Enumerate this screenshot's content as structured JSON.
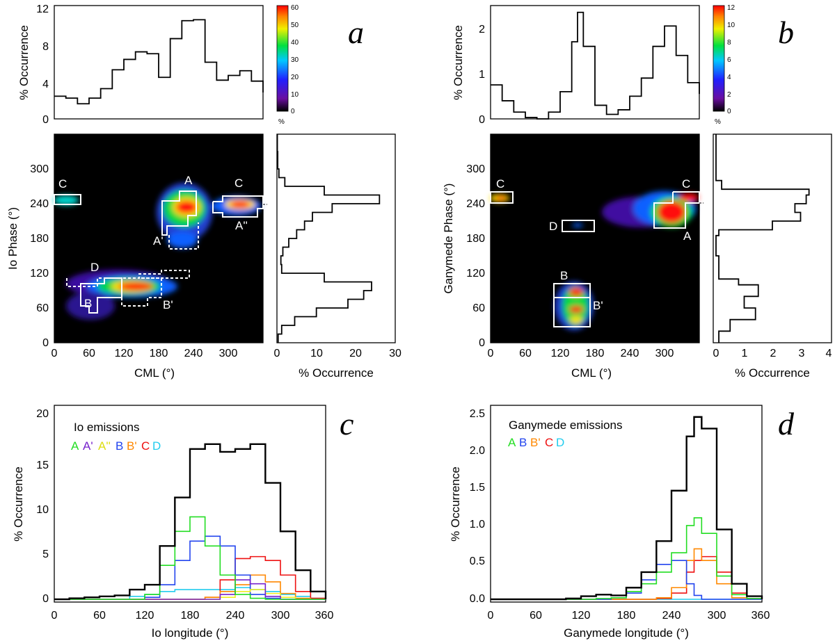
{
  "chart_data": [
    {
      "panel": "a",
      "type": "line",
      "title": "",
      "xlabel": "",
      "ylabel": "% Occurrence",
      "xlim": [
        0,
        360
      ],
      "ylim": [
        0,
        12
      ],
      "yticks": [
        "0",
        "4",
        "8",
        "12"
      ],
      "x": [
        0,
        20,
        40,
        60,
        80,
        100,
        120,
        140,
        160,
        180,
        200,
        220,
        240,
        260,
        280,
        300,
        320,
        340,
        360
      ],
      "values": [
        2.4,
        2.2,
        1.6,
        2.2,
        3.2,
        5.2,
        6.3,
        7.1,
        6.9,
        4.4,
        8.5,
        10.4,
        10.5,
        6.0,
        4.1,
        4.6,
        5.1,
        4.0,
        2.8
      ]
    },
    {
      "panel": "a",
      "type": "heatmap",
      "title": "",
      "xlabel": "CML (°)",
      "ylabel": "Io Phase (°)",
      "xlim": [
        0,
        360
      ],
      "ylim": [
        0,
        360
      ],
      "xticks": [
        "0",
        "60",
        "120",
        "180",
        "240",
        "300"
      ],
      "yticks": [
        "0",
        "60",
        "120",
        "180",
        "240",
        "300"
      ],
      "colorbar": {
        "ticks": [
          "0",
          "10",
          "20",
          "30",
          "40",
          "50",
          "60"
        ],
        "unit": "%"
      },
      "regions": [
        {
          "label": "A",
          "cml": [
            205,
            265
          ],
          "phase": [
            195,
            260
          ],
          "style": "solid"
        },
        {
          "label": "A'",
          "cml": [
            205,
            260
          ],
          "phase": [
            160,
            200
          ],
          "style": "dashed"
        },
        {
          "label": "A''",
          "cml": [
            265,
            330
          ],
          "phase": [
            215,
            250
          ],
          "style": "dashed"
        },
        {
          "label": "B",
          "cml": [
            75,
            175
          ],
          "phase": [
            55,
            115
          ],
          "style": "solid"
        },
        {
          "label": "B'",
          "cml": [
            150,
            195
          ],
          "phase": [
            65,
            120
          ],
          "style": "dashed"
        },
        {
          "label": "C",
          "cml": [
            0,
            40
          ],
          "phase": [
            235,
            255
          ],
          "style": "solid"
        },
        {
          "label": "C",
          "cml": [
            290,
            360
          ],
          "phase": [
            225,
            260
          ],
          "style": "solid"
        },
        {
          "label": "D",
          "cml": [
            10,
            210
          ],
          "phase": [
            95,
            125
          ],
          "style": "dashed"
        }
      ]
    },
    {
      "panel": "a",
      "type": "line",
      "title": "",
      "xlabel": "% Occurrence",
      "ylabel": "",
      "xlim": [
        0,
        30
      ],
      "xticks": [
        "0",
        "10",
        "20",
        "30"
      ],
      "ylim": [
        0,
        360
      ],
      "phase": [
        0,
        15,
        30,
        45,
        60,
        75,
        90,
        105,
        120,
        135,
        150,
        165,
        180,
        195,
        210,
        225,
        240,
        255,
        270,
        285,
        300,
        330,
        360
      ],
      "values": [
        0.3,
        1.2,
        4.5,
        10,
        18,
        22,
        24,
        12,
        1.2,
        1.0,
        1.5,
        3,
        5,
        7,
        9,
        14,
        26,
        12,
        2,
        0.5,
        0.2,
        0.1,
        0.1
      ]
    },
    {
      "panel": "b",
      "type": "line",
      "title": "",
      "xlabel": "",
      "ylabel": "% Occurrence",
      "xlim": [
        0,
        360
      ],
      "ylim": [
        0,
        2.5
      ],
      "yticks": [
        "0",
        "1",
        "2"
      ],
      "x": [
        0,
        20,
        40,
        60,
        80,
        100,
        120,
        140,
        150,
        160,
        180,
        200,
        220,
        240,
        260,
        280,
        300,
        320,
        340,
        360
      ],
      "values": [
        0.75,
        0.4,
        0.15,
        0.03,
        0.0,
        0.15,
        0.6,
        1.7,
        2.35,
        1.6,
        0.3,
        0.1,
        0.2,
        0.5,
        0.9,
        1.6,
        2.05,
        1.4,
        0.8,
        0.55
      ]
    },
    {
      "panel": "b",
      "type": "heatmap",
      "title": "",
      "xlabel": "CML (°)",
      "ylabel": "Ganymede Phase (°)",
      "xlim": [
        0,
        360
      ],
      "ylim": [
        0,
        360
      ],
      "xticks": [
        "0",
        "60",
        "120",
        "180",
        "240",
        "300"
      ],
      "yticks": [
        "0",
        "60",
        "120",
        "180",
        "240",
        "300"
      ],
      "colorbar": {
        "ticks": [
          "0",
          "2",
          "4",
          "6",
          "8",
          "10",
          "12"
        ],
        "unit": "%"
      },
      "regions": [
        {
          "label": "A",
          "cml": [
            290,
            335
          ],
          "phase": [
            195,
            240
          ],
          "style": "solid"
        },
        {
          "label": "B",
          "cml": [
            115,
            165
          ],
          "phase": [
            75,
            100
          ],
          "style": "solid"
        },
        {
          "label": "B'",
          "cml": [
            115,
            165
          ],
          "phase": [
            35,
            75
          ],
          "style": "solid"
        },
        {
          "label": "C",
          "cml": [
            0,
            35
          ],
          "phase": [
            240,
            260
          ],
          "style": "solid"
        },
        {
          "label": "C",
          "cml": [
            320,
            360
          ],
          "phase": [
            240,
            260
          ],
          "style": "solid"
        },
        {
          "label": "D",
          "cml": [
            115,
            165
          ],
          "phase": [
            195,
            210
          ],
          "style": "solid"
        }
      ]
    },
    {
      "panel": "b",
      "type": "line",
      "title": "",
      "xlabel": "% Occurrence",
      "ylabel": "",
      "xlim": [
        0,
        4
      ],
      "xticks": [
        "0",
        "1",
        "2",
        "3",
        "4"
      ],
      "ylim": [
        0,
        360
      ],
      "phase": [
        0,
        20,
        40,
        60,
        80,
        100,
        110,
        150,
        185,
        195,
        210,
        225,
        240,
        255,
        265,
        280,
        360
      ],
      "values": [
        0.1,
        0.5,
        1.4,
        1.0,
        1.5,
        0.8,
        0.1,
        0.0,
        0.1,
        2.0,
        3.0,
        2.8,
        3.2,
        3.3,
        0.2,
        0.0,
        0.0
      ]
    },
    {
      "panel": "c",
      "type": "line",
      "title": "",
      "xlabel": "Io longitude (°)",
      "ylabel": "% Occurrence",
      "xlim": [
        0,
        360
      ],
      "ylim": [
        0,
        20
      ],
      "xticks": [
        "0",
        "60",
        "120",
        "180",
        "240",
        "300",
        "360"
      ],
      "yticks": [
        "0",
        "5",
        "10",
        "15",
        "20"
      ],
      "annotation": "Io emissions",
      "x": [
        0,
        20,
        40,
        60,
        80,
        100,
        120,
        140,
        160,
        180,
        200,
        220,
        240,
        260,
        280,
        300,
        320,
        340,
        360
      ],
      "series": [
        {
          "name": "total",
          "color": "#000000",
          "values": [
            0,
            0.1,
            0.2,
            0.3,
            0.4,
            1.0,
            1.5,
            5.5,
            10.5,
            15.5,
            16.0,
            15.2,
            15.5,
            16.0,
            12.0,
            7.0,
            3.0,
            0.8,
            0
          ]
        },
        {
          "name": "A",
          "color": "#22dd22",
          "values": [
            0,
            0,
            0,
            0,
            0,
            0,
            0.5,
            3.5,
            7.0,
            8.5,
            5.5,
            2.5,
            0.5,
            0.1,
            0,
            0,
            0,
            0,
            0
          ]
        },
        {
          "name": "A'",
          "color": "#7722cc",
          "values": [
            0,
            0,
            0,
            0,
            0,
            0,
            0,
            0,
            0,
            0,
            0,
            0.5,
            2.0,
            1.6,
            0.3,
            0,
            0,
            0,
            0
          ]
        },
        {
          "name": "A''",
          "color": "#eeee22",
          "values": [
            0,
            0,
            0,
            0,
            0,
            0,
            0,
            0,
            0,
            0,
            0,
            0.2,
            0.8,
            1.0,
            0.6,
            0.2,
            0,
            0,
            0
          ]
        },
        {
          "name": "B",
          "color": "#2244ee",
          "values": [
            0,
            0,
            0,
            0,
            0,
            0,
            0.2,
            1.5,
            4.0,
            6.0,
            6.5,
            5.5,
            2.5,
            0.5,
            0.1,
            0,
            0,
            0,
            0
          ]
        },
        {
          "name": "B'",
          "color": "#ff8800",
          "values": [
            0,
            0,
            0,
            0,
            0,
            0,
            0,
            0,
            0,
            0,
            0.2,
            0.8,
            1.5,
            2.5,
            1.8,
            0.6,
            0.1,
            0,
            0
          ]
        },
        {
          "name": "C",
          "color": "#ee1111",
          "values": [
            0,
            0,
            0,
            0,
            0,
            0,
            0,
            0,
            0,
            0,
            0.2,
            2.0,
            4.2,
            4.4,
            4.0,
            2.5,
            0.8,
            0.1,
            0
          ]
        },
        {
          "name": "D",
          "color": "#22ccee",
          "values": [
            0,
            0,
            0,
            0,
            0,
            0.3,
            0.5,
            0.8,
            1.0,
            1.0,
            1.0,
            1.0,
            1.2,
            1.0,
            0.8,
            0.5,
            0.3,
            0.1,
            0
          ]
        }
      ]
    },
    {
      "panel": "d",
      "type": "line",
      "title": "",
      "xlabel": "Ganymede longitude (°)",
      "ylabel": "% Occurrence",
      "xlim": [
        0,
        360
      ],
      "ylim": [
        0,
        2.5
      ],
      "xticks": [
        "0",
        "60",
        "120",
        "180",
        "240",
        "300",
        "360"
      ],
      "yticks": [
        "0.0",
        "0.5",
        "1.0",
        "1.5",
        "2.0",
        "2.5"
      ],
      "annotation": "Ganymede emissions",
      "x": [
        0,
        20,
        40,
        60,
        80,
        100,
        120,
        140,
        160,
        180,
        200,
        220,
        240,
        260,
        270,
        280,
        300,
        320,
        340,
        360
      ],
      "series": [
        {
          "name": "total",
          "color": "#000000",
          "values": [
            0,
            0,
            0,
            0,
            0,
            0.01,
            0.04,
            0.06,
            0.05,
            0.15,
            0.35,
            0.75,
            1.4,
            2.1,
            2.35,
            2.2,
            0.9,
            0.2,
            0.04,
            0
          ]
        },
        {
          "name": "A",
          "color": "#22dd22",
          "values": [
            0,
            0,
            0,
            0,
            0,
            0,
            0,
            0.01,
            0.02,
            0.1,
            0.2,
            0.35,
            0.6,
            0.95,
            1.05,
            0.85,
            0.3,
            0.06,
            0.01,
            0
          ]
        },
        {
          "name": "B",
          "color": "#2244ee",
          "values": [
            0,
            0,
            0,
            0,
            0,
            0,
            0,
            0,
            0.02,
            0.08,
            0.25,
            0.45,
            0.5,
            0.2,
            0.05,
            0,
            0,
            0,
            0,
            0
          ]
        },
        {
          "name": "B'",
          "color": "#ff8800",
          "values": [
            0,
            0,
            0,
            0,
            0,
            0,
            0,
            0,
            0,
            0,
            0,
            0.02,
            0.15,
            0.5,
            0.65,
            0.5,
            0.2,
            0.02,
            0,
            0
          ]
        },
        {
          "name": "C",
          "color": "#ee1111",
          "values": [
            0,
            0,
            0,
            0,
            0,
            0,
            0,
            0,
            0,
            0,
            0,
            0.01,
            0.08,
            0.35,
            0.5,
            0.55,
            0.35,
            0.08,
            0.01,
            0
          ]
        },
        {
          "name": "D",
          "color": "#22ccee",
          "values": [
            0,
            0,
            0,
            0,
            0,
            0,
            0,
            0,
            0,
            0,
            0,
            0,
            0,
            0,
            0,
            0,
            0,
            0,
            0,
            0
          ]
        }
      ]
    }
  ],
  "panels": {
    "a": "a",
    "b": "b",
    "c": "c",
    "d": "d"
  },
  "legend_c": [
    "A",
    "A'",
    "A''",
    "B",
    "B'",
    "C",
    "D"
  ],
  "legend_d": [
    "A",
    "B",
    "B'",
    "C",
    "D"
  ]
}
